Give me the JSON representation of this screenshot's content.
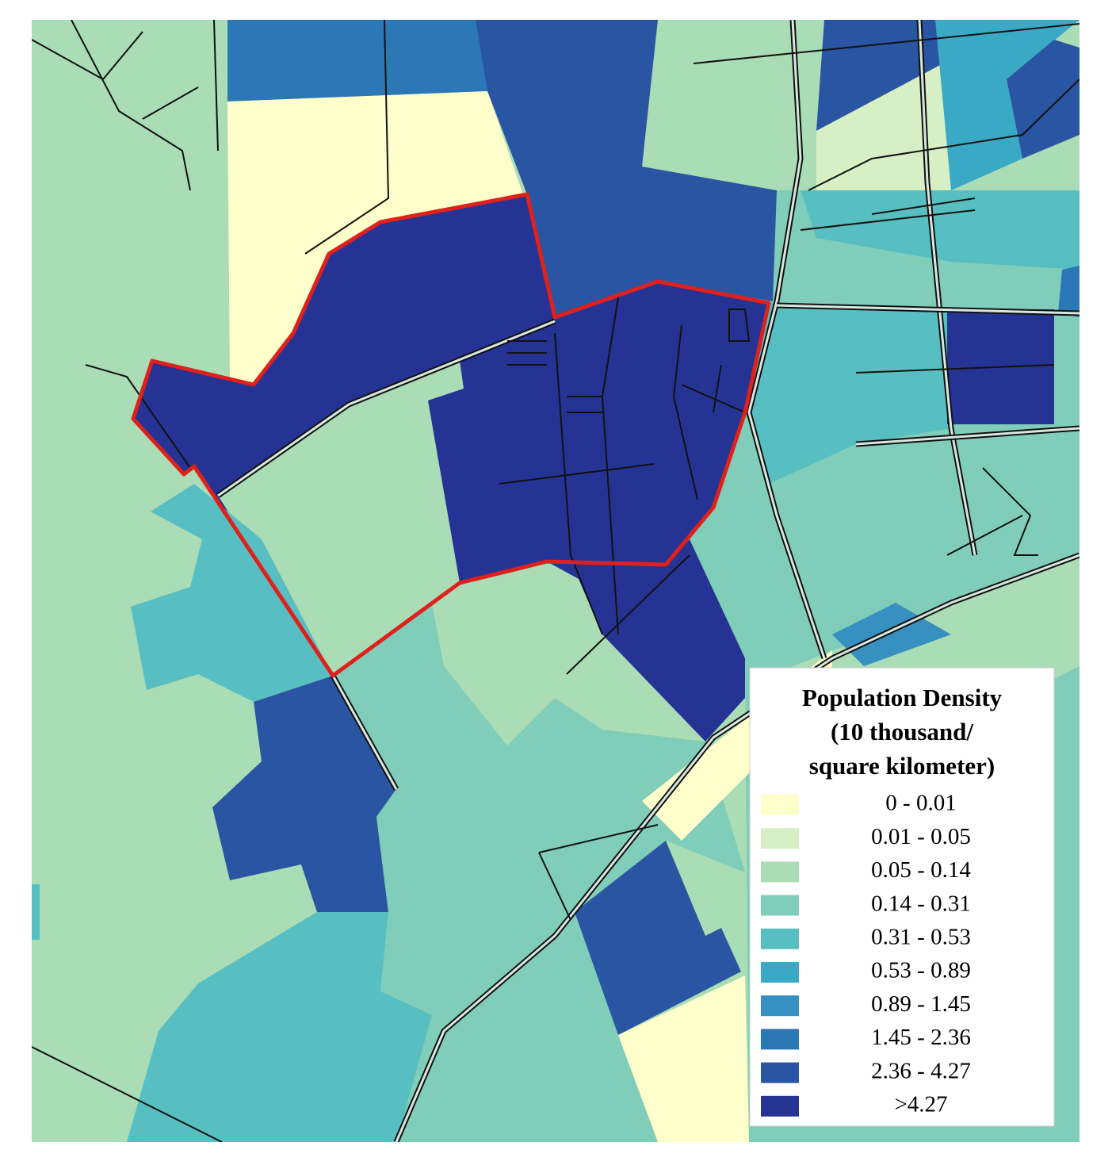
{
  "legend": {
    "title": [
      "Population Density",
      "(10 thousand/",
      "square kilometer)"
    ],
    "items": [
      {
        "label": "0 - 0.01",
        "color": "#ffffcc"
      },
      {
        "label": "0.01 - 0.05",
        "color": "#d6efc4"
      },
      {
        "label": "0.05 - 0.14",
        "color": "#aadcb6"
      },
      {
        "label": "0.14 - 0.31",
        "color": "#80cdb9"
      },
      {
        "label": "0.31 - 0.53",
        "color": "#57bec1"
      },
      {
        "label": "0.53 - 0.89",
        "color": "#3aa9c6"
      },
      {
        "label": "0.89 - 1.45",
        "color": "#3690c0"
      },
      {
        "label": "1.45 - 2.36",
        "color": "#2c78b7"
      },
      {
        "label": "2.36 - 4.27",
        "color": "#2a55a2"
      },
      {
        "label": ">4.27",
        "color": "#253494"
      }
    ]
  }
}
